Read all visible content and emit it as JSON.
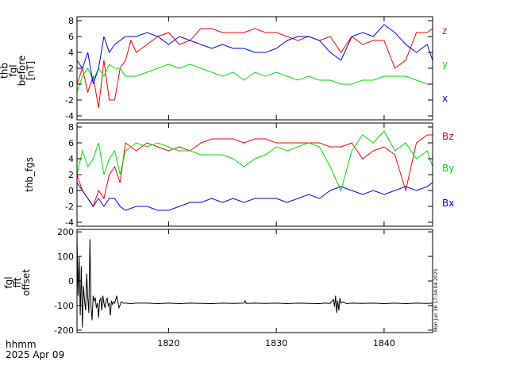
{
  "footer": {
    "time_format_label": "hhmm",
    "date_label": "2025 Apr 09",
    "timestamp_vertical": "Mon Jun 26 17:34:04 2025"
  },
  "colors": {
    "red": "#ff0000",
    "green": "#00e000",
    "blue": "#0000ff",
    "black": "#000000"
  },
  "chart_data": [
    {
      "type": "line",
      "ylabel_lines": [
        "thb",
        "fgl",
        "before",
        "[nT]"
      ],
      "xlim": [
        1811.5,
        1844.5
      ],
      "ylim": [
        -4.5,
        8.5
      ],
      "yticks": [
        -4,
        -2,
        0,
        2,
        4,
        6,
        8
      ],
      "xticks": [
        1820,
        1830,
        1840
      ],
      "grid": false,
      "legend_placement": "right",
      "series": [
        {
          "name": "z",
          "color": "#ff0000",
          "x": [
            1811.5,
            1812,
            1812.5,
            1813,
            1813.5,
            1814,
            1814.5,
            1815,
            1815.5,
            1816,
            1816.5,
            1817,
            1818,
            1819,
            1820,
            1821,
            1822,
            1823,
            1824,
            1825,
            1826,
            1827,
            1828,
            1829,
            1830,
            1831,
            1832,
            1833,
            1834,
            1835,
            1836,
            1837,
            1838,
            1839,
            1840,
            1841,
            1842,
            1843,
            1844,
            1844.5
          ],
          "y": [
            0,
            2,
            -1,
            1,
            -3,
            3,
            -2,
            -2,
            2,
            3,
            5.5,
            4,
            5,
            6,
            6.5,
            5,
            5.5,
            7,
            7,
            6.5,
            6.5,
            6.5,
            7,
            6.5,
            6.5,
            6,
            5.5,
            6,
            5.5,
            6,
            4,
            6,
            5,
            5.5,
            5.5,
            2,
            3,
            6.5,
            6.5,
            7
          ]
        },
        {
          "name": "y",
          "color": "#00e000",
          "x": [
            1811.5,
            1812,
            1812.5,
            1813,
            1813.5,
            1814,
            1814.5,
            1815,
            1815.5,
            1816,
            1817,
            1818,
            1819,
            1820,
            1821,
            1822,
            1823,
            1824,
            1825,
            1826,
            1827,
            1828,
            1829,
            1830,
            1831,
            1832,
            1833,
            1834,
            1835,
            1836,
            1837,
            1838,
            1839,
            1840,
            1841,
            1842,
            1843,
            1844,
            1844.5
          ],
          "y": [
            -1,
            1,
            2,
            0.5,
            2,
            1,
            2.5,
            2,
            2,
            1,
            1,
            1.5,
            2,
            2.5,
            2,
            2.5,
            2,
            1.5,
            1,
            1.5,
            0.5,
            1.5,
            1,
            1.5,
            1,
            0.5,
            1,
            0.5,
            0.5,
            0,
            0,
            0.5,
            0.5,
            1,
            1,
            1,
            0.5,
            0,
            0
          ]
        },
        {
          "name": "x",
          "color": "#0000ff",
          "x": [
            1811.5,
            1812,
            1812.5,
            1813,
            1813.5,
            1814,
            1814.5,
            1815,
            1815.5,
            1816,
            1817,
            1818,
            1819,
            1820,
            1821,
            1822,
            1823,
            1824,
            1825,
            1826,
            1827,
            1828,
            1829,
            1830,
            1831,
            1832,
            1833,
            1834,
            1835,
            1836,
            1837,
            1838,
            1839,
            1840,
            1841,
            1842,
            1843,
            1844,
            1844.5
          ],
          "y": [
            3,
            2,
            4,
            0,
            2,
            6,
            4,
            5,
            5.5,
            6,
            6,
            6.5,
            6,
            5,
            6,
            5.5,
            5,
            4.5,
            5,
            4.5,
            4.5,
            4,
            4,
            4.5,
            5.5,
            6,
            6,
            5.5,
            4,
            3,
            6,
            6.5,
            6,
            7.5,
            6.5,
            5,
            4,
            5,
            3
          ]
        }
      ],
      "legend": [
        "z",
        "y",
        "x"
      ]
    },
    {
      "type": "line",
      "ylabel_lines": [
        "thb_fgs"
      ],
      "xlim": [
        1811.5,
        1844.5
      ],
      "ylim": [
        -4.5,
        8.5
      ],
      "yticks": [
        -4,
        -2,
        0,
        2,
        4,
        6,
        8
      ],
      "xticks": [
        1820,
        1830,
        1840
      ],
      "grid": false,
      "legend_placement": "right",
      "series": [
        {
          "name": "Bz",
          "color": "#ff0000",
          "x": [
            1811.5,
            1812,
            1812.5,
            1813,
            1813.5,
            1814,
            1814.5,
            1815,
            1815.5,
            1816,
            1817,
            1818,
            1819,
            1820,
            1821,
            1822,
            1823,
            1824,
            1825,
            1826,
            1827,
            1828,
            1829,
            1830,
            1831,
            1832,
            1833,
            1834,
            1835,
            1836,
            1837,
            1838,
            1839,
            1840,
            1841,
            1842,
            1843,
            1844,
            1844.5
          ],
          "y": [
            2,
            0,
            -1,
            -2,
            0,
            -1,
            2,
            3,
            1,
            6,
            5,
            6,
            5.5,
            5,
            5.5,
            5,
            6,
            6.5,
            6.5,
            6.5,
            6,
            6.5,
            6.5,
            6,
            6,
            6,
            6,
            6,
            5.5,
            5.5,
            6,
            4,
            5,
            5.5,
            4.5,
            0,
            6,
            7,
            7
          ]
        },
        {
          "name": "By",
          "color": "#00e000",
          "x": [
            1811.5,
            1812,
            1812.5,
            1813,
            1813.5,
            1814,
            1814.5,
            1815,
            1815.5,
            1816,
            1817,
            1818,
            1819,
            1820,
            1821,
            1822,
            1823,
            1824,
            1825,
            1826,
            1827,
            1828,
            1829,
            1830,
            1831,
            1832,
            1833,
            1834,
            1835,
            1836,
            1837,
            1838,
            1839,
            1840,
            1841,
            1842,
            1843,
            1844,
            1844.5
          ],
          "y": [
            2,
            5,
            3,
            4,
            6,
            2,
            4,
            5,
            2,
            5,
            6,
            5.5,
            6,
            5.5,
            5,
            5,
            4.5,
            4.5,
            4.5,
            4,
            3,
            4,
            4.5,
            5.5,
            5,
            5.5,
            6,
            5.5,
            3,
            0,
            5,
            7,
            6,
            7.5,
            5,
            6,
            4,
            5,
            3
          ]
        },
        {
          "name": "Bx",
          "color": "#0000ff",
          "x": [
            1811.5,
            1812,
            1812.5,
            1813,
            1813.5,
            1814,
            1814.5,
            1815,
            1815.5,
            1816,
            1817,
            1818,
            1819,
            1820,
            1821,
            1822,
            1823,
            1824,
            1825,
            1826,
            1827,
            1828,
            1829,
            1830,
            1831,
            1832,
            1833,
            1834,
            1835,
            1836,
            1837,
            1838,
            1839,
            1840,
            1841,
            1842,
            1843,
            1844,
            1844.5
          ],
          "y": [
            1,
            0,
            -1,
            -2,
            -1,
            -2,
            -1,
            -1,
            -2,
            -2.5,
            -2,
            -2,
            -2.5,
            -2.5,
            -2,
            -1.5,
            -1.5,
            -1,
            -1.5,
            -1,
            -1.5,
            -1,
            -1,
            -1,
            -1.5,
            -1,
            -0.5,
            -1,
            0,
            0.5,
            0,
            -0.5,
            0,
            -0.5,
            0,
            0.5,
            0,
            0.5,
            1
          ]
        }
      ],
      "legend": [
        "Bz",
        "By",
        "Bx"
      ]
    },
    {
      "type": "line",
      "ylabel_lines": [
        "fgl",
        "fft",
        "offset"
      ],
      "xlim": [
        1811.5,
        1844.5
      ],
      "ylim": [
        -210,
        210
      ],
      "yticks": [
        -200,
        -100,
        0,
        100,
        200
      ],
      "xticks": [
        1820,
        1830,
        1840
      ],
      "xtick_labels": [
        "1820",
        "1830",
        "1840"
      ],
      "grid": false,
      "series": [
        {
          "name": "",
          "color": "#000000",
          "x": [
            1811.5,
            1811.6,
            1811.7,
            1811.8,
            1811.9,
            1812,
            1812.1,
            1812.2,
            1812.3,
            1812.4,
            1812.5,
            1812.6,
            1812.7,
            1812.8,
            1812.9,
            1813,
            1813.1,
            1813.2,
            1813.3,
            1813.4,
            1813.5,
            1813.6,
            1813.7,
            1813.8,
            1813.9,
            1814,
            1814.1,
            1814.2,
            1814.3,
            1814.4,
            1814.5,
            1814.6,
            1814.7,
            1814.8,
            1814.9,
            1815,
            1815.2,
            1815.4,
            1815.6,
            1815.8,
            1816,
            1816.5,
            1817,
            1818,
            1819,
            1820,
            1821,
            1822,
            1823,
            1824,
            1825,
            1826,
            1827,
            1827.1,
            1827.2,
            1828,
            1829,
            1830,
            1831,
            1832,
            1833,
            1834,
            1834.5,
            1835,
            1835.3,
            1835.4,
            1835.5,
            1835.6,
            1835.7,
            1835.8,
            1835.9,
            1836,
            1836.2,
            1836.5,
            1837,
            1838,
            1839,
            1840,
            1841,
            1842,
            1843,
            1844,
            1844.5
          ],
          "y": [
            180,
            -60,
            100,
            -140,
            60,
            -190,
            -20,
            -80,
            -120,
            30,
            -70,
            -130,
            170,
            -100,
            -160,
            -60,
            -80,
            -70,
            -110,
            -90,
            -150,
            -80,
            -70,
            -120,
            -60,
            -90,
            -110,
            -80,
            -70,
            -100,
            -90,
            -140,
            -80,
            -95,
            -85,
            -90,
            -60,
            -110,
            -85,
            -90,
            -90,
            -92,
            -90,
            -90,
            -92,
            -90,
            -92,
            -90,
            -91,
            -92,
            -90,
            -91,
            -90,
            -80,
            -91,
            -90,
            -91,
            -90,
            -92,
            -90,
            -91,
            -92,
            -90,
            -91,
            -75,
            -105,
            -60,
            -130,
            -80,
            -120,
            -70,
            -90,
            -85,
            -92,
            -90,
            -91,
            -90,
            -92,
            -90,
            -92,
            -90,
            -91,
            -90
          ]
        }
      ]
    }
  ]
}
